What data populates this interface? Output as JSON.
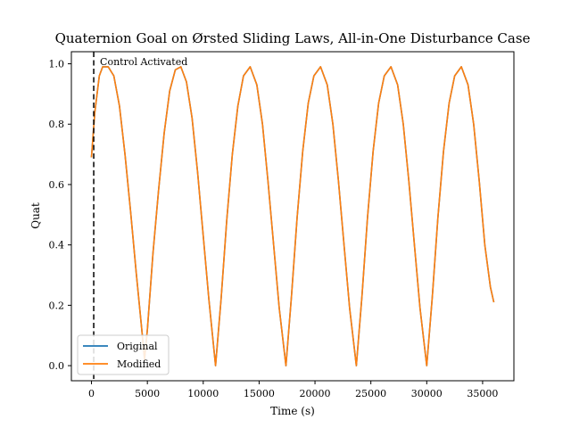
{
  "chart_data": {
    "type": "line",
    "title": "Quaternion Goal on Ørsted Sliding Laws, All-in-One Disturbance Case",
    "xlabel": "Time (s)",
    "ylabel": "Quat",
    "xlim": [
      -1800,
      37800
    ],
    "ylim": [
      -0.05,
      1.04
    ],
    "xticks": [
      0,
      5000,
      10000,
      15000,
      20000,
      25000,
      30000,
      35000
    ],
    "yticks": [
      0.0,
      0.2,
      0.4,
      0.6,
      0.8,
      1.0
    ],
    "ytick_labels": [
      "0.0",
      "0.2",
      "0.4",
      "0.6",
      "0.8",
      "1.0"
    ],
    "grid": false,
    "legend_position": "lower-left",
    "annotation": {
      "x": 200,
      "label": "Control Activated",
      "style": "dashed",
      "color": "#000000"
    },
    "series": [
      {
        "name": "Original",
        "color": "#1f77b4",
        "points": [
          [
            0,
            0.69
          ],
          [
            300,
            0.84
          ],
          [
            700,
            0.96
          ],
          [
            1000,
            0.99
          ],
          [
            1500,
            0.99
          ],
          [
            2000,
            0.96
          ],
          [
            2500,
            0.86
          ],
          [
            3000,
            0.7
          ],
          [
            3500,
            0.51
          ],
          [
            4000,
            0.31
          ],
          [
            4500,
            0.12
          ],
          [
            4750,
            0.02
          ],
          [
            5000,
            0.12
          ],
          [
            5500,
            0.37
          ],
          [
            6000,
            0.58
          ],
          [
            6500,
            0.77
          ],
          [
            7000,
            0.91
          ],
          [
            7500,
            0.98
          ],
          [
            8000,
            0.99
          ],
          [
            8500,
            0.94
          ],
          [
            9000,
            0.82
          ],
          [
            9500,
            0.64
          ],
          [
            10000,
            0.43
          ],
          [
            10500,
            0.22
          ],
          [
            11100,
            0.0
          ],
          [
            11600,
            0.22
          ],
          [
            12100,
            0.48
          ],
          [
            12600,
            0.7
          ],
          [
            13100,
            0.86
          ],
          [
            13600,
            0.96
          ],
          [
            14200,
            0.99
          ],
          [
            14800,
            0.93
          ],
          [
            15300,
            0.8
          ],
          [
            15800,
            0.61
          ],
          [
            16300,
            0.4
          ],
          [
            16800,
            0.19
          ],
          [
            17400,
            0.0
          ],
          [
            17900,
            0.23
          ],
          [
            18400,
            0.49
          ],
          [
            18900,
            0.71
          ],
          [
            19400,
            0.87
          ],
          [
            19900,
            0.96
          ],
          [
            20500,
            0.99
          ],
          [
            21100,
            0.93
          ],
          [
            21600,
            0.8
          ],
          [
            22100,
            0.61
          ],
          [
            22600,
            0.4
          ],
          [
            23100,
            0.19
          ],
          [
            23700,
            0.0
          ],
          [
            24200,
            0.23
          ],
          [
            24700,
            0.49
          ],
          [
            25200,
            0.71
          ],
          [
            25700,
            0.87
          ],
          [
            26200,
            0.96
          ],
          [
            26800,
            0.99
          ],
          [
            27400,
            0.93
          ],
          [
            27900,
            0.8
          ],
          [
            28400,
            0.61
          ],
          [
            28900,
            0.4
          ],
          [
            29400,
            0.19
          ],
          [
            30000,
            0.0
          ],
          [
            30500,
            0.23
          ],
          [
            31000,
            0.49
          ],
          [
            31500,
            0.71
          ],
          [
            32000,
            0.87
          ],
          [
            32500,
            0.96
          ],
          [
            33100,
            0.99
          ],
          [
            33700,
            0.93
          ],
          [
            34200,
            0.8
          ],
          [
            34700,
            0.61
          ],
          [
            35200,
            0.4
          ],
          [
            35700,
            0.26
          ],
          [
            36000,
            0.21
          ]
        ]
      },
      {
        "name": "Modified",
        "color": "#ff7f0e",
        "points": [
          [
            0,
            0.69
          ],
          [
            300,
            0.84
          ],
          [
            700,
            0.96
          ],
          [
            1000,
            0.99
          ],
          [
            1500,
            0.99
          ],
          [
            2000,
            0.96
          ],
          [
            2500,
            0.86
          ],
          [
            3000,
            0.7
          ],
          [
            3500,
            0.51
          ],
          [
            4000,
            0.31
          ],
          [
            4500,
            0.12
          ],
          [
            4750,
            0.02
          ],
          [
            5000,
            0.12
          ],
          [
            5500,
            0.37
          ],
          [
            6000,
            0.58
          ],
          [
            6500,
            0.77
          ],
          [
            7000,
            0.91
          ],
          [
            7500,
            0.98
          ],
          [
            8000,
            0.99
          ],
          [
            8500,
            0.94
          ],
          [
            9000,
            0.82
          ],
          [
            9500,
            0.64
          ],
          [
            10000,
            0.43
          ],
          [
            10500,
            0.22
          ],
          [
            11100,
            0.0
          ],
          [
            11600,
            0.22
          ],
          [
            12100,
            0.48
          ],
          [
            12600,
            0.7
          ],
          [
            13100,
            0.86
          ],
          [
            13600,
            0.96
          ],
          [
            14200,
            0.99
          ],
          [
            14800,
            0.93
          ],
          [
            15300,
            0.8
          ],
          [
            15800,
            0.61
          ],
          [
            16300,
            0.4
          ],
          [
            16800,
            0.19
          ],
          [
            17400,
            0.0
          ],
          [
            17900,
            0.23
          ],
          [
            18400,
            0.49
          ],
          [
            18900,
            0.71
          ],
          [
            19400,
            0.87
          ],
          [
            19900,
            0.96
          ],
          [
            20500,
            0.99
          ],
          [
            21100,
            0.93
          ],
          [
            21600,
            0.8
          ],
          [
            22100,
            0.61
          ],
          [
            22600,
            0.4
          ],
          [
            23100,
            0.19
          ],
          [
            23700,
            0.0
          ],
          [
            24200,
            0.23
          ],
          [
            24700,
            0.49
          ],
          [
            25200,
            0.71
          ],
          [
            25700,
            0.87
          ],
          [
            26200,
            0.96
          ],
          [
            26800,
            0.99
          ],
          [
            27400,
            0.93
          ],
          [
            27900,
            0.8
          ],
          [
            28400,
            0.61
          ],
          [
            28900,
            0.4
          ],
          [
            29400,
            0.19
          ],
          [
            30000,
            0.0
          ],
          [
            30500,
            0.23
          ],
          [
            31000,
            0.49
          ],
          [
            31500,
            0.71
          ],
          [
            32000,
            0.87
          ],
          [
            32500,
            0.96
          ],
          [
            33100,
            0.99
          ],
          [
            33700,
            0.93
          ],
          [
            34200,
            0.8
          ],
          [
            34700,
            0.61
          ],
          [
            35200,
            0.4
          ],
          [
            35700,
            0.26
          ],
          [
            36000,
            0.21
          ]
        ]
      }
    ]
  }
}
